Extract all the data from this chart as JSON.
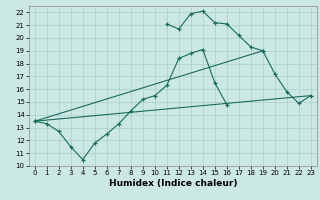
{
  "title": "",
  "xlabel": "Humidex (Indice chaleur)",
  "xlim": [
    -0.5,
    23.5
  ],
  "ylim": [
    10,
    22.5
  ],
  "xticks": [
    0,
    1,
    2,
    3,
    4,
    5,
    6,
    7,
    8,
    9,
    10,
    11,
    12,
    13,
    14,
    15,
    16,
    17,
    18,
    19,
    20,
    21,
    22,
    23
  ],
  "yticks": [
    10,
    11,
    12,
    13,
    14,
    15,
    16,
    17,
    18,
    19,
    20,
    21,
    22
  ],
  "bg_color": "#cce8e4",
  "line_color": "#1a6b5a",
  "grid_color": "#aacfcc",
  "line1": {
    "x": [
      0,
      1,
      2,
      3,
      4,
      5,
      6,
      7,
      8,
      9,
      10,
      11,
      12,
      13,
      14,
      15,
      16
    ],
    "y": [
      13.5,
      13.3,
      12.7,
      11.5,
      10.5,
      11.8,
      12.5,
      13.3,
      14.3,
      15.2,
      15.5,
      16.3,
      18.4,
      18.8,
      19.1,
      16.5,
      14.8
    ]
  },
  "line2": {
    "x": [
      11,
      12,
      13,
      14,
      15,
      16,
      17,
      18,
      19
    ],
    "y": [
      21.1,
      20.7,
      21.9,
      22.1,
      21.2,
      21.1,
      20.2,
      19.3,
      19.0
    ]
  },
  "line3": {
    "x": [
      0,
      19,
      20,
      21,
      22,
      23
    ],
    "y": [
      13.5,
      19.0,
      17.2,
      15.8,
      14.9,
      15.5
    ]
  },
  "line4": {
    "x": [
      0,
      23
    ],
    "y": [
      13.5,
      15.5
    ]
  }
}
